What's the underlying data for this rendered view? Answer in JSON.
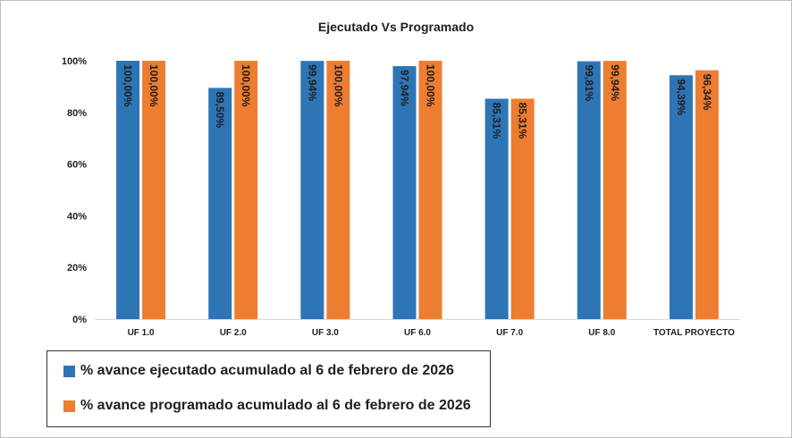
{
  "chart_data": {
    "type": "bar",
    "title": "Ejecutado Vs Programado",
    "categories": [
      "UF 1.0",
      "UF 2.0",
      "UF 3.0",
      "UF 6.0",
      "UF 7.0",
      "UF 8.0",
      "TOTAL PROYECTO"
    ],
    "series": [
      {
        "name": "% avance ejecutado acumulado al 6 de febrero de 2026",
        "color": "#2e75b6",
        "values": [
          100.0,
          89.5,
          99.94,
          97.94,
          85.31,
          99.81,
          94.39
        ],
        "labels": [
          "100,00%",
          "89,50%",
          "99,94%",
          "97,94%",
          "85,31%",
          "99,81%",
          "94,39%"
        ]
      },
      {
        "name": "% avance programado acumulado al 6 de febrero de 2026",
        "color": "#ed7d31",
        "values": [
          100.0,
          100.0,
          100.0,
          100.0,
          85.31,
          99.94,
          96.34
        ],
        "labels": [
          "100,00%",
          "100,00%",
          "100,00%",
          "100,00%",
          "85,31%",
          "99,94%",
          "96,34%"
        ]
      }
    ],
    "ylim": [
      0,
      100
    ],
    "yticks": [
      0,
      20,
      40,
      60,
      80,
      100
    ],
    "ytick_labels": [
      "0%",
      "20%",
      "40%",
      "60%",
      "80%",
      "100%"
    ],
    "xlabel": "",
    "ylabel": "",
    "grid": false,
    "legend_position": "bottom-left"
  }
}
